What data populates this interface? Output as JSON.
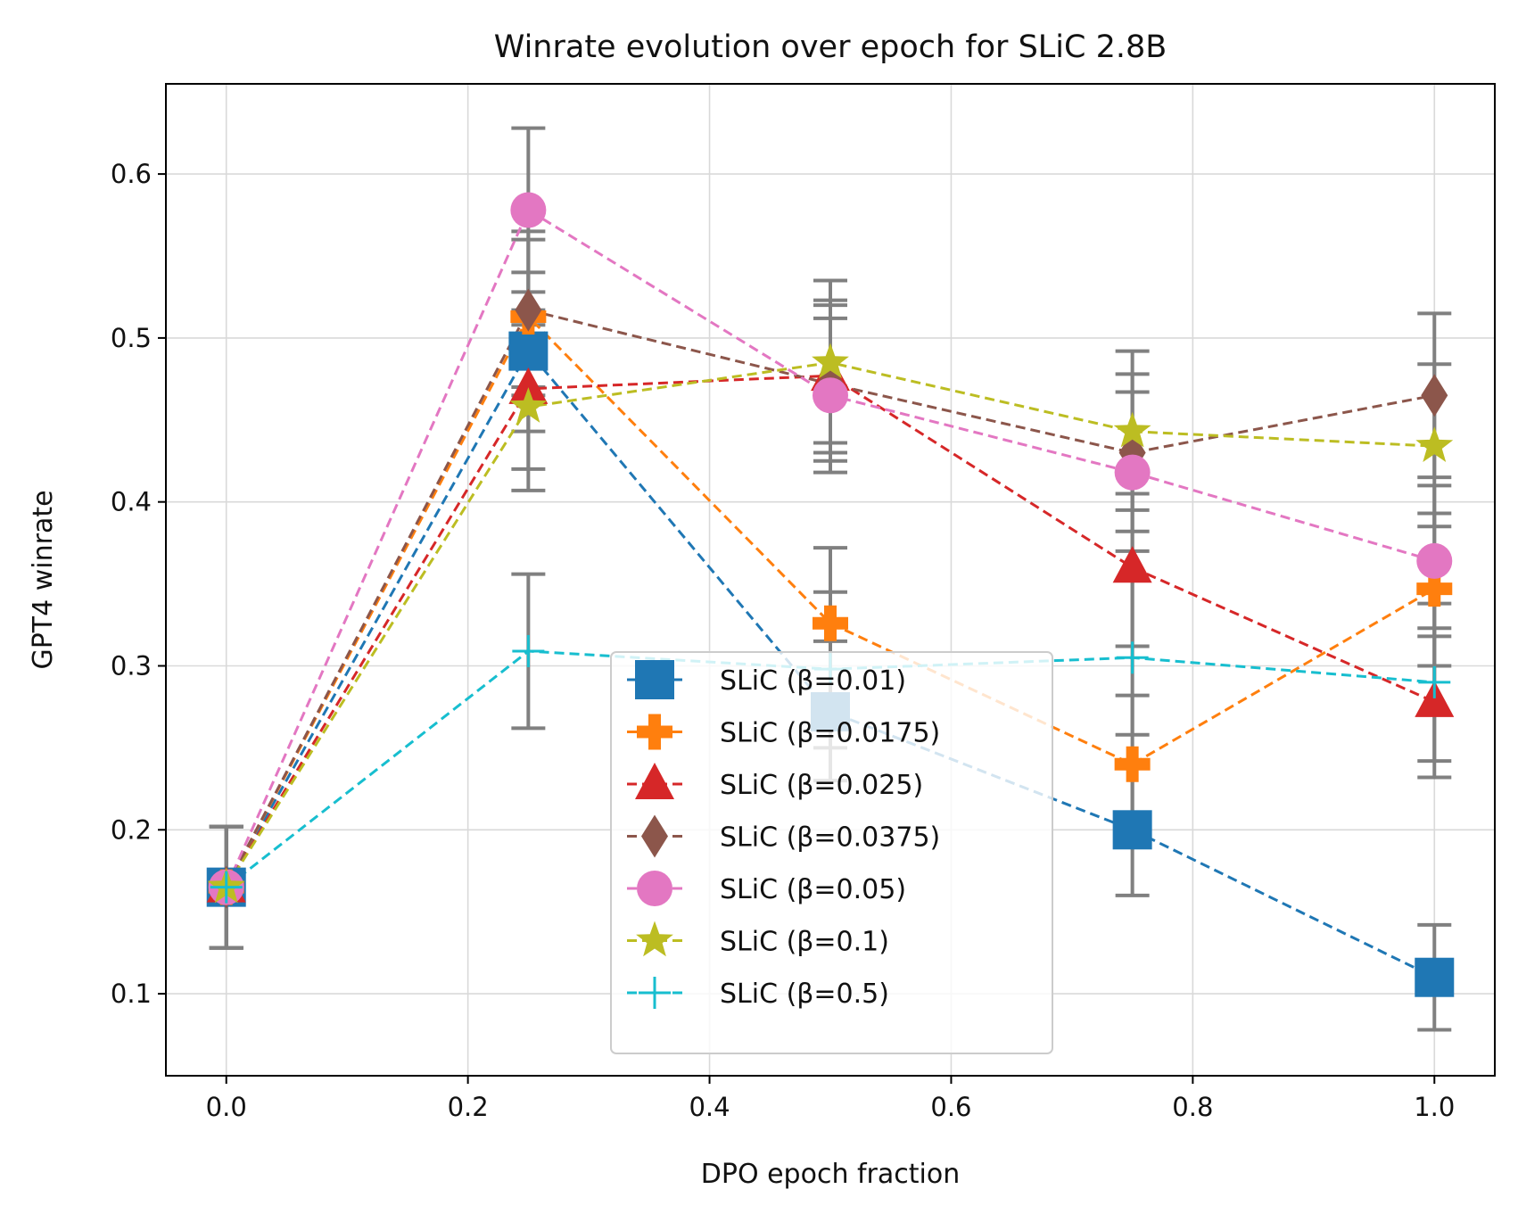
{
  "chart_data": {
    "type": "line",
    "title": "Winrate evolution over epoch for SLiC 2.8B",
    "xlabel": "DPO epoch fraction",
    "ylabel": "GPT4 winrate",
    "xlim": [
      -0.05,
      1.05
    ],
    "ylim": [
      0.05,
      0.655
    ],
    "xticks": [
      0.0,
      0.2,
      0.4,
      0.6,
      0.8,
      1.0
    ],
    "xtick_labels": [
      "0.0",
      "0.2",
      "0.4",
      "0.6",
      "0.8",
      "1.0"
    ],
    "yticks": [
      0.1,
      0.2,
      0.3,
      0.4,
      0.5,
      0.6
    ],
    "ytick_labels": [
      "0.1",
      "0.2",
      "0.3",
      "0.4",
      "0.5",
      "0.6"
    ],
    "grid": true,
    "legend_position": "lower-center",
    "error_bar_color": "#808080",
    "x": [
      0.0,
      0.25,
      0.5,
      0.75,
      1.0
    ],
    "series": [
      {
        "name": "SLiC (β=0.01)",
        "color": "#1f77b4",
        "marker": "square",
        "values": [
          0.165,
          0.492,
          0.272,
          0.2,
          0.11
        ],
        "err_low": [
          0.128,
          0.443,
          0.23,
          0.16,
          0.078
        ],
        "err_high": [
          0.202,
          0.54,
          0.315,
          0.24,
          0.142
        ]
      },
      {
        "name": "SLiC (β=0.0175)",
        "color": "#ff7f0e",
        "marker": "plus-filled",
        "values": [
          0.165,
          0.513,
          0.326,
          0.24,
          0.347
        ],
        "err_low": [
          0.128,
          0.465,
          0.28,
          0.2,
          0.3
        ],
        "err_high": [
          0.202,
          0.56,
          0.372,
          0.282,
          0.393
        ]
      },
      {
        "name": "SLiC (β=0.025)",
        "color": "#d62728",
        "marker": "triangle",
        "values": [
          0.165,
          0.469,
          0.477,
          0.36,
          0.278
        ],
        "err_low": [
          0.128,
          0.42,
          0.43,
          0.312,
          0.232
        ],
        "err_high": [
          0.202,
          0.517,
          0.523,
          0.405,
          0.323
        ]
      },
      {
        "name": "SLiC (β=0.0375)",
        "color": "#8c564b",
        "marker": "diamond",
        "values": [
          0.165,
          0.517,
          0.472,
          0.43,
          0.465
        ],
        "err_low": [
          0.128,
          0.47,
          0.425,
          0.382,
          0.415
        ],
        "err_high": [
          0.202,
          0.565,
          0.52,
          0.478,
          0.515
        ]
      },
      {
        "name": "SLiC (β=0.05)",
        "color": "#e377c2",
        "marker": "circle",
        "values": [
          0.165,
          0.578,
          0.465,
          0.418,
          0.364
        ],
        "err_low": [
          0.128,
          0.528,
          0.418,
          0.37,
          0.318
        ],
        "err_high": [
          0.202,
          0.628,
          0.512,
          0.467,
          0.41
        ]
      },
      {
        "name": "SLiC (β=0.1)",
        "color": "#bcbd22",
        "marker": "star",
        "values": [
          0.165,
          0.458,
          0.485,
          0.443,
          0.434
        ],
        "err_low": [
          0.128,
          0.407,
          0.436,
          0.395,
          0.385
        ],
        "err_high": [
          0.202,
          0.508,
          0.535,
          0.492,
          0.484
        ]
      },
      {
        "name": "SLiC (β=0.5)",
        "color": "#17becf",
        "marker": "plus",
        "values": [
          0.165,
          0.309,
          0.298,
          0.305,
          0.29
        ],
        "err_low": [
          0.128,
          0.262,
          0.25,
          0.258,
          0.242
        ],
        "err_high": [
          0.202,
          0.356,
          0.345,
          0.352,
          0.338
        ]
      }
    ]
  }
}
